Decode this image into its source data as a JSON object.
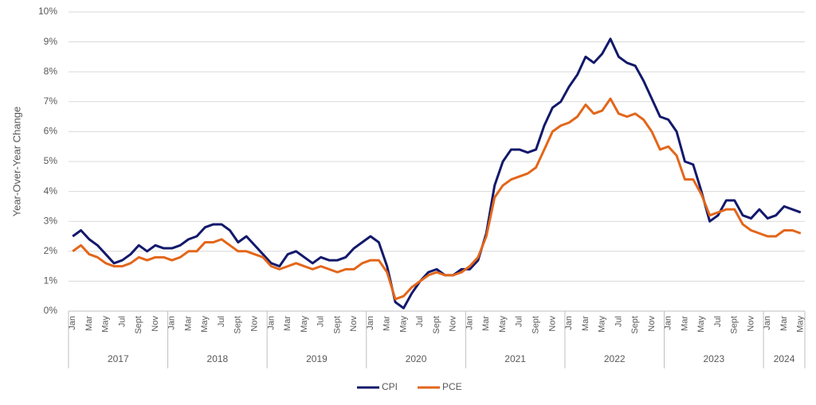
{
  "chart_data": {
    "type": "line",
    "y_label": "Year-Over-Year Change",
    "categories": [
      "Jan",
      null,
      "Mar",
      null,
      "May",
      null,
      "Jul",
      null,
      "Sept",
      null,
      "Nov",
      null,
      "Jan",
      null,
      "Mar",
      null,
      "May",
      null,
      "Jul",
      null,
      "Sept",
      null,
      "Nov",
      null,
      "Jan",
      null,
      "Mar",
      null,
      "May",
      null,
      "Jul",
      null,
      "Sept",
      null,
      "Nov",
      null,
      "Jan",
      null,
      "Mar",
      null,
      "May",
      null,
      "Jul",
      null,
      "Sept",
      null,
      "Nov",
      null,
      "Jan",
      null,
      "Mar",
      null,
      "May",
      null,
      "Jul",
      null,
      "Sept",
      null,
      "Nov",
      null,
      "Jan",
      null,
      "Mar",
      null,
      "May",
      null,
      "Jul",
      null,
      "Sept",
      null,
      "Nov",
      null,
      "Jan",
      null,
      "Mar",
      null,
      "May",
      null,
      "Jul",
      null,
      "Sept",
      null,
      "Nov",
      null,
      "Jan",
      null,
      "Mar",
      null,
      "May"
    ],
    "x_groups": [
      "2017",
      "2018",
      "2019",
      "2020",
      "2021",
      "2022",
      "2023",
      "2024"
    ],
    "series": [
      {
        "name": "CPI",
        "color": "#13196b",
        "values": [
          2.5,
          2.7,
          2.4,
          2.2,
          1.9,
          1.6,
          1.7,
          1.9,
          2.2,
          2.0,
          2.2,
          2.1,
          2.1,
          2.2,
          2.4,
          2.5,
          2.8,
          2.9,
          2.9,
          2.7,
          2.3,
          2.5,
          2.2,
          1.9,
          1.6,
          1.5,
          1.9,
          2.0,
          1.8,
          1.6,
          1.8,
          1.7,
          1.7,
          1.8,
          2.1,
          2.3,
          2.5,
          2.3,
          1.5,
          0.3,
          0.1,
          0.6,
          1.0,
          1.3,
          1.4,
          1.2,
          1.2,
          1.4,
          1.4,
          1.7,
          2.6,
          4.2,
          5.0,
          5.4,
          5.4,
          5.3,
          5.4,
          6.2,
          6.8,
          7.0,
          7.5,
          7.9,
          8.5,
          8.3,
          8.6,
          9.1,
          8.5,
          8.3,
          8.2,
          7.7,
          7.1,
          6.5,
          6.4,
          6.0,
          5.0,
          4.9,
          4.0,
          3.0,
          3.2,
          3.7,
          3.7,
          3.2,
          3.1,
          3.4,
          3.1,
          3.2,
          3.5,
          3.4,
          3.3
        ]
      },
      {
        "name": "PCE",
        "color": "#e3661a",
        "values": [
          2.0,
          2.2,
          1.9,
          1.8,
          1.6,
          1.5,
          1.5,
          1.6,
          1.8,
          1.7,
          1.8,
          1.8,
          1.7,
          1.8,
          2.0,
          2.0,
          2.3,
          2.3,
          2.4,
          2.2,
          2.0,
          2.0,
          1.9,
          1.8,
          1.5,
          1.4,
          1.5,
          1.6,
          1.5,
          1.4,
          1.5,
          1.4,
          1.3,
          1.4,
          1.4,
          1.6,
          1.7,
          1.7,
          1.3,
          0.4,
          0.5,
          0.8,
          1.0,
          1.2,
          1.3,
          1.2,
          1.2,
          1.3,
          1.5,
          1.8,
          2.5,
          3.8,
          4.2,
          4.4,
          4.5,
          4.6,
          4.8,
          5.4,
          6.0,
          6.2,
          6.3,
          6.5,
          6.9,
          6.6,
          6.7,
          7.1,
          6.6,
          6.5,
          6.6,
          6.4,
          6.0,
          5.4,
          5.5,
          5.2,
          4.4,
          4.4,
          3.9,
          3.2,
          3.3,
          3.4,
          3.4,
          2.9,
          2.7,
          2.6,
          2.5,
          2.5,
          2.7,
          2.7,
          2.6
        ]
      }
    ],
    "ylim": [
      0,
      10
    ],
    "yticks": [
      {
        "value": 0,
        "label": "0%"
      },
      {
        "value": 1,
        "label": "1%"
      },
      {
        "value": 2,
        "label": "2%"
      },
      {
        "value": 3,
        "label": "3%"
      },
      {
        "value": 4,
        "label": "4%"
      },
      {
        "value": 5,
        "label": "5%"
      },
      {
        "value": 6,
        "label": "6%"
      },
      {
        "value": 7,
        "label": "7%"
      },
      {
        "value": 8,
        "label": "8%"
      },
      {
        "value": 9,
        "label": "9%"
      },
      {
        "value": 10,
        "label": "10%"
      }
    ],
    "grid": true,
    "legend": "bottom"
  }
}
